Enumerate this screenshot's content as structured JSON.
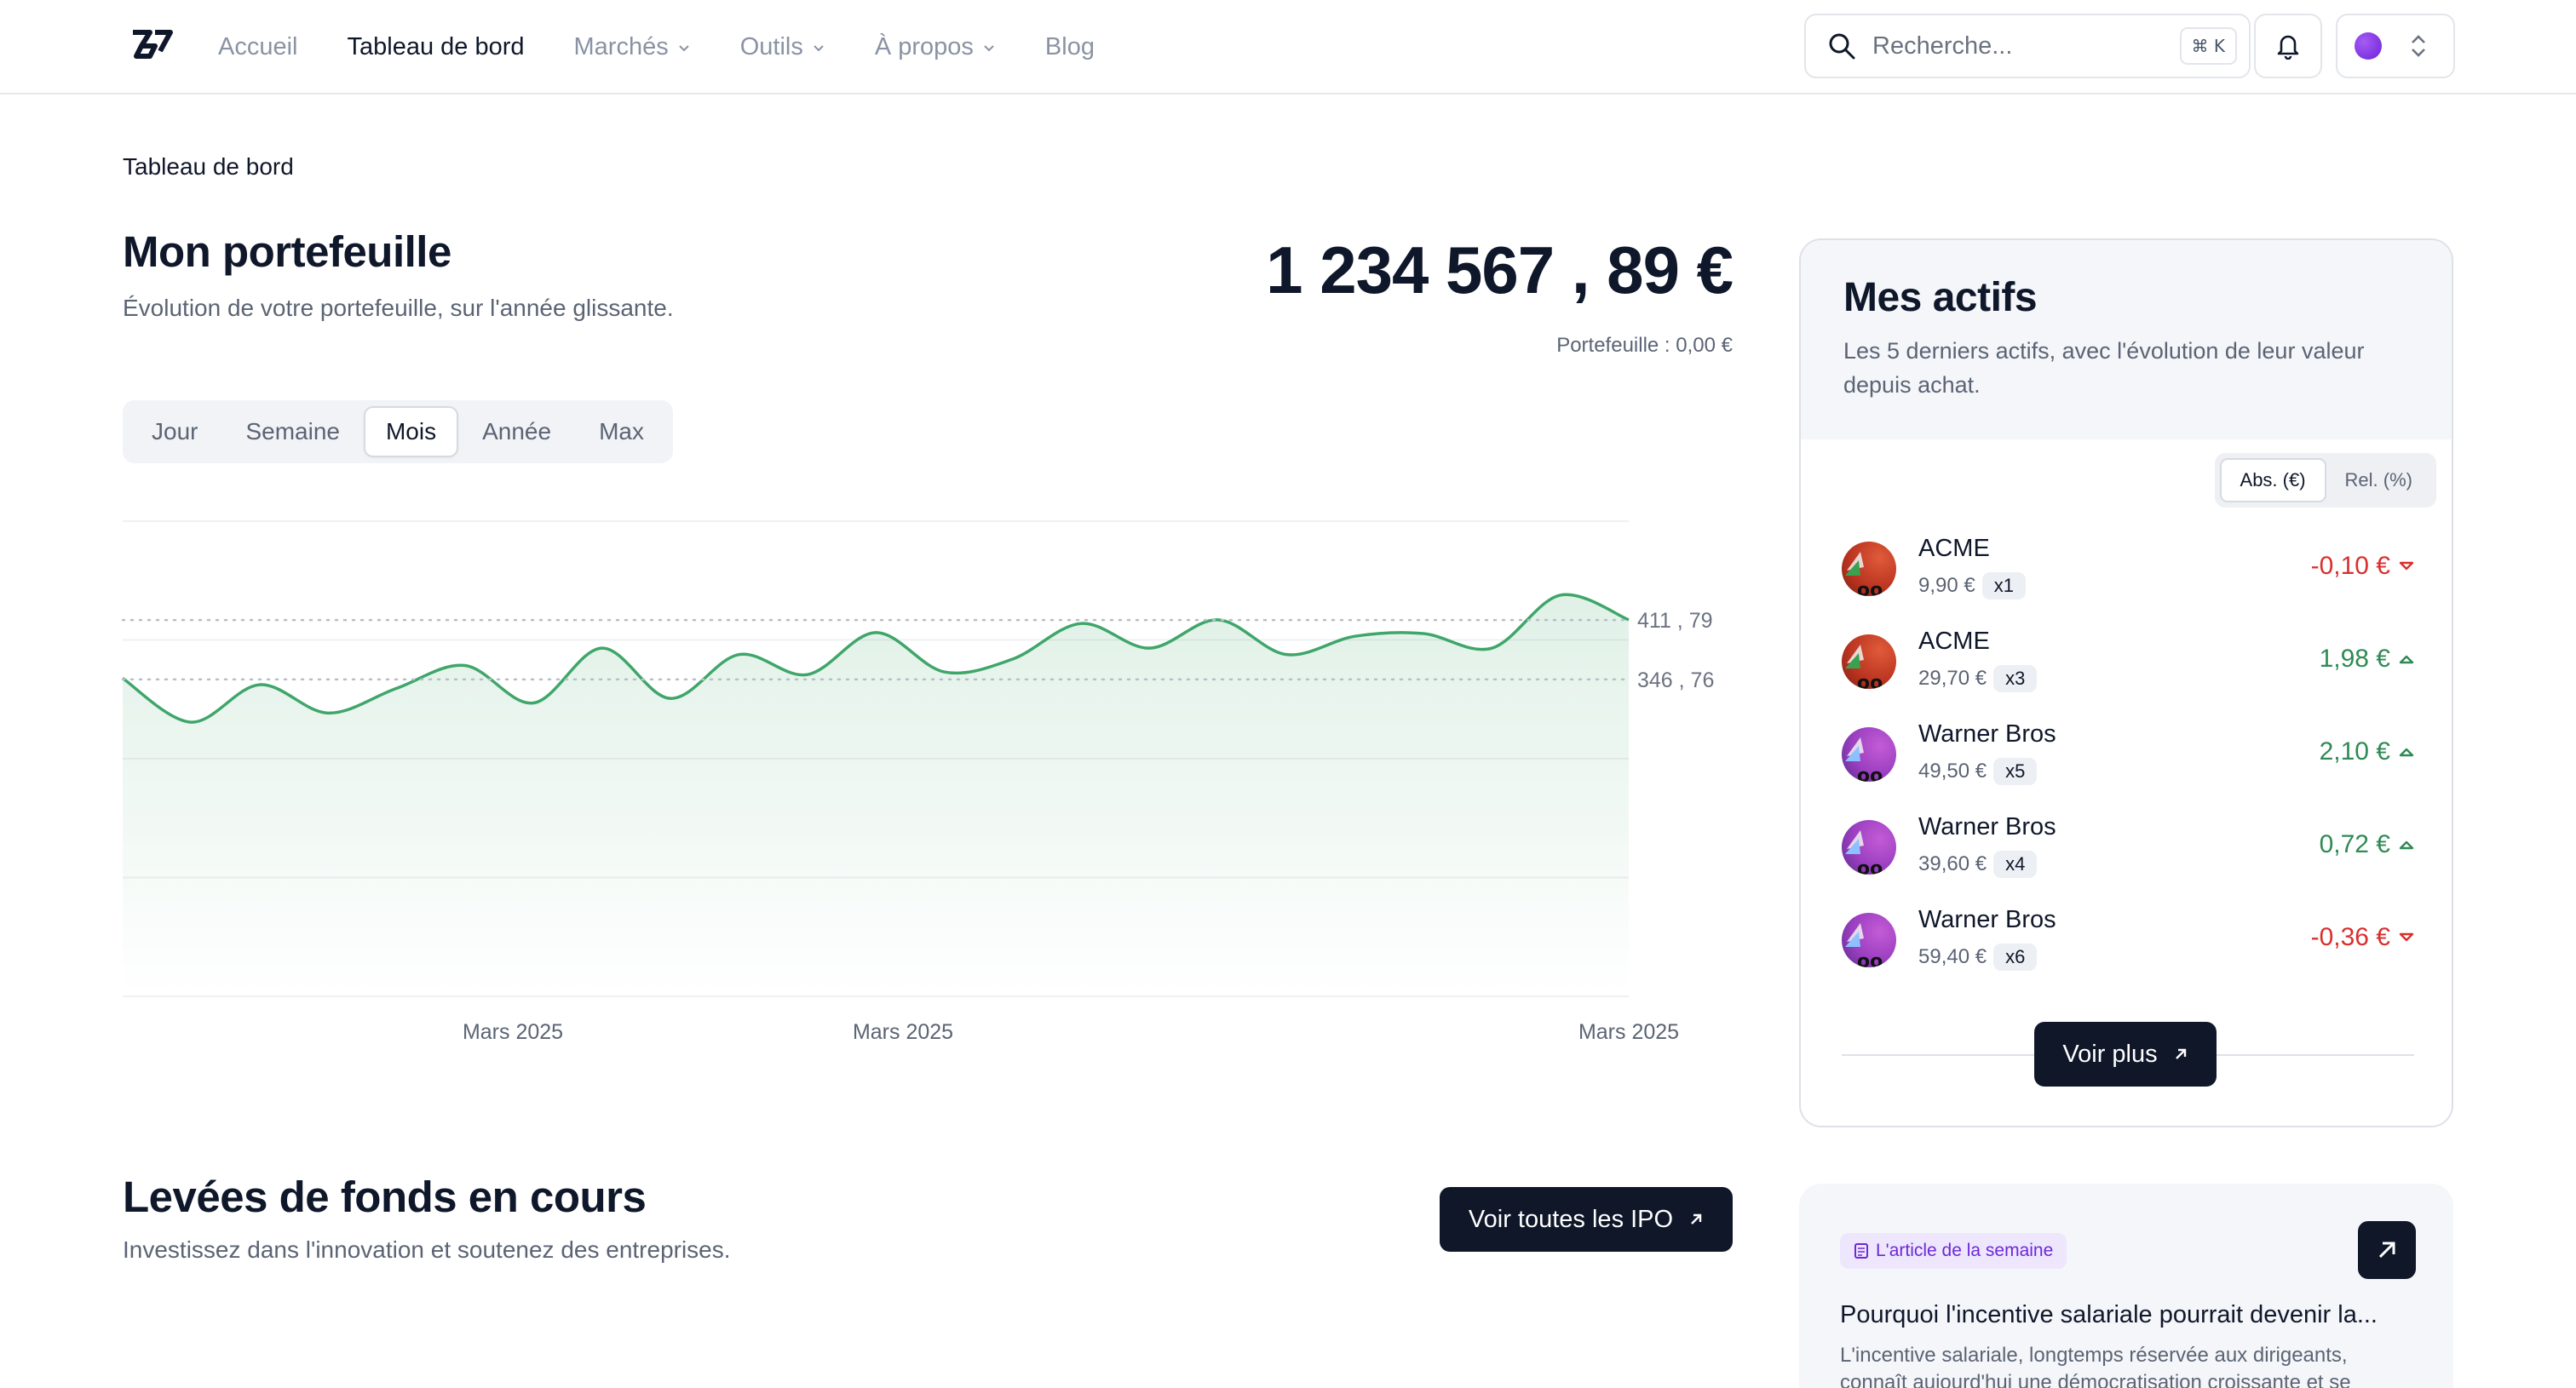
{
  "nav": {
    "items": [
      {
        "label": "Accueil",
        "active": false,
        "has_menu": false
      },
      {
        "label": "Tableau de bord",
        "active": true,
        "has_menu": false
      },
      {
        "label": "Marchés",
        "active": false,
        "has_menu": true
      },
      {
        "label": "Outils",
        "active": false,
        "has_menu": true
      },
      {
        "label": "À propos",
        "active": false,
        "has_menu": true
      },
      {
        "label": "Blog",
        "active": false,
        "has_menu": false
      }
    ],
    "search": {
      "placeholder": "Recherche...",
      "shortcut": "⌘ K"
    },
    "icons": {
      "logo": "app-logo",
      "search": "search-icon",
      "bell": "bell-icon",
      "account": "account-avatar",
      "switch": "chevron-up-down-icon"
    }
  },
  "breadcrumb": "Tableau de bord",
  "portfolio": {
    "title": "Mon portefeuille",
    "subtitle": "Évolution de votre portefeuille, sur l'année glissante.",
    "balance": "1 234 567 , 89  €",
    "balance_sub": "Portefeuille : 0,00 €",
    "periods": [
      {
        "label": "Jour",
        "active": false
      },
      {
        "label": "Semaine",
        "active": false
      },
      {
        "label": "Mois",
        "active": true
      },
      {
        "label": "Année",
        "active": false
      },
      {
        "label": "Max",
        "active": false
      }
    ]
  },
  "chart_data": {
    "type": "area",
    "title": "",
    "xlabel": "",
    "ylabel": "",
    "ylim": [
      0,
      520
    ],
    "grid": true,
    "color": "#3fa66a",
    "x_ticks": [
      "Mars 2025",
      "Mars 2025",
      "Mars 2025"
    ],
    "reference_lines": [
      {
        "value": 411.79,
        "label": "411 , 79"
      },
      {
        "value": 346.76,
        "label": "346 , 76"
      }
    ],
    "series": [
      {
        "name": "Portefeuille",
        "values": [
          348,
          300,
          341,
          310,
          337,
          362,
          321,
          381,
          326,
          374,
          352,
          398,
          355,
          369,
          408,
          381,
          412,
          374,
          394,
          397,
          381,
          439,
          412
        ]
      }
    ]
  },
  "assets": {
    "title": "Mes actifs",
    "subtitle": "Les 5 derniers actifs, avec l'évolution de leur valeur depuis achat.",
    "toggle": [
      {
        "label": "Abs. (€)",
        "active": true
      },
      {
        "label": "Rel. (%)",
        "active": false
      }
    ],
    "items": [
      {
        "name": "ACME",
        "price": "9,90 €",
        "qty": "x1",
        "change": "-0,10 €",
        "direction": "down",
        "avatar": "acme"
      },
      {
        "name": "ACME",
        "price": "29,70 €",
        "qty": "x3",
        "change": "1,98 €",
        "direction": "up",
        "avatar": "acme"
      },
      {
        "name": "Warner Bros",
        "price": "49,50 €",
        "qty": "x5",
        "change": "2,10 €",
        "direction": "up",
        "avatar": "warner"
      },
      {
        "name": "Warner Bros",
        "price": "39,60 €",
        "qty": "x4",
        "change": "0,72 €",
        "direction": "up",
        "avatar": "warner"
      },
      {
        "name": "Warner Bros",
        "price": "59,40 €",
        "qty": "x6",
        "change": "-0,36 €",
        "direction": "down",
        "avatar": "warner"
      }
    ],
    "more_label": "Voir plus"
  },
  "ipo": {
    "title": "Levées de fonds en cours",
    "subtitle": "Investissez dans l'innovation et soutenez des entreprises.",
    "button_label": "Voir toutes les IPO"
  },
  "article": {
    "tag": "L'article de la semaine",
    "title": "Pourquoi l'incentive salariale pourrait devenir la...",
    "excerpt": "L'incentive salariale, longtemps réservée aux dirigeants, connaît aujourd'hui une démocratisation croissante et se"
  },
  "colors": {
    "primary_dark": "#0f1729",
    "positive": "#2f8a55",
    "negative": "#d92f2f",
    "chart_line": "#3fa66a",
    "tag_purple": "#6d28d9"
  }
}
